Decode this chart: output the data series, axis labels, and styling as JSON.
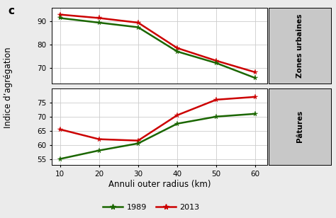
{
  "x": [
    10,
    20,
    30,
    40,
    50,
    60
  ],
  "urban_1989": [
    91.5,
    89.5,
    87.5,
    77.0,
    72.0,
    65.5
  ],
  "urban_2013": [
    93.0,
    91.5,
    89.5,
    78.5,
    73.0,
    68.0
  ],
  "pature_1989": [
    55.0,
    58.0,
    60.5,
    67.5,
    70.0,
    71.0
  ],
  "pature_2013": [
    65.5,
    62.0,
    61.5,
    70.5,
    76.0,
    77.0
  ],
  "color_1989": "#1a6600",
  "color_2013": "#cc0000",
  "xlabel": "Annuli outer radius (km)",
  "ylabel": "Indice d’agrégation",
  "label_1989": "1989",
  "label_2013": "2013",
  "right_label_top": "Zones urbaines",
  "right_label_bottom": "Pâtures",
  "panel_label": "c",
  "bg_color": "#ebebeb",
  "plot_bg_color": "#ffffff",
  "right_panel_color": "#c8c8c8",
  "urban_ylim": [
    63,
    96
  ],
  "urban_yticks": [
    70,
    80,
    90
  ],
  "pature_ylim": [
    53,
    80
  ],
  "pature_yticks": [
    55,
    60,
    65,
    70,
    75
  ]
}
